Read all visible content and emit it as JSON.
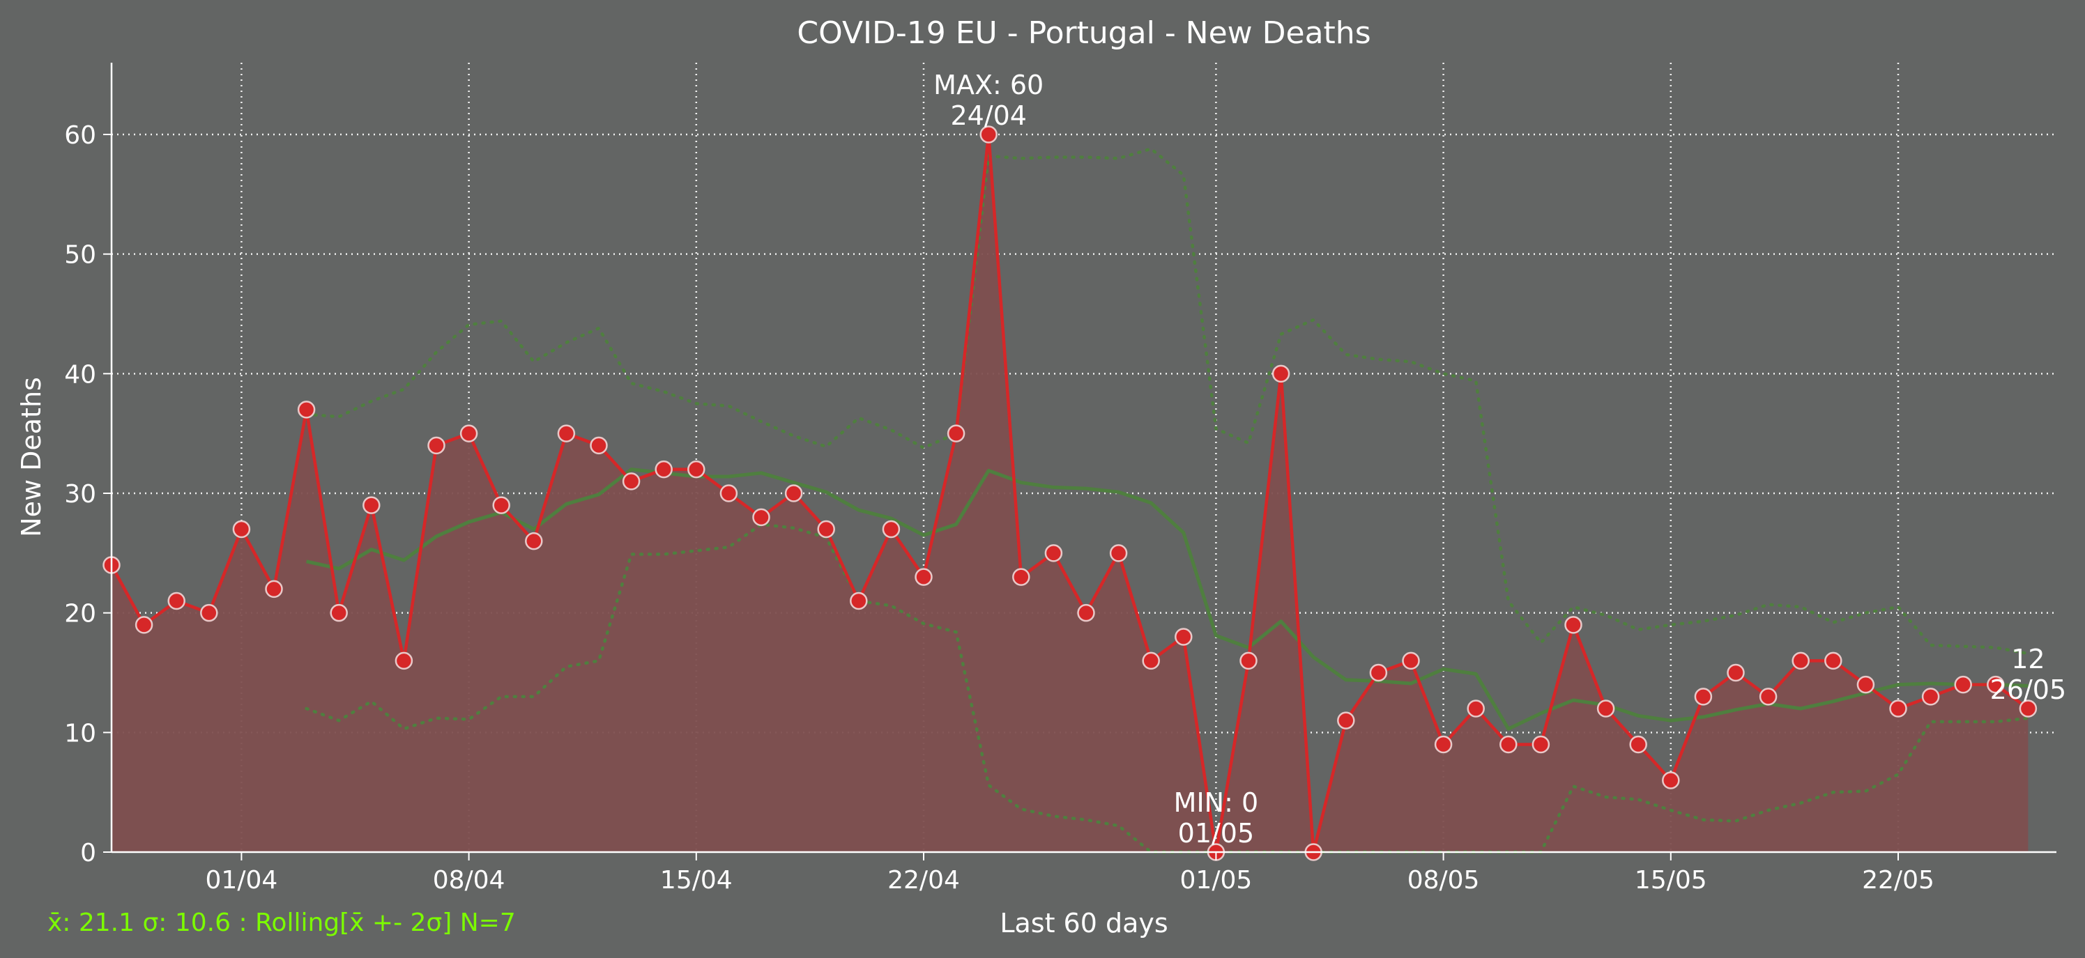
{
  "chart_data": {
    "type": "line",
    "title": "COVID-19 EU - Portugal - New Deaths",
    "xlabel": "Last 60 days",
    "ylabel": "New Deaths",
    "ylim": [
      0,
      66
    ],
    "yticks": [
      0,
      10,
      20,
      30,
      40,
      50,
      60
    ],
    "dates": [
      "28/03",
      "29/03",
      "30/03",
      "31/03",
      "01/04",
      "02/04",
      "03/04",
      "04/04",
      "05/04",
      "06/04",
      "07/04",
      "08/04",
      "09/04",
      "10/04",
      "11/04",
      "12/04",
      "13/04",
      "14/04",
      "15/04",
      "16/04",
      "17/04",
      "18/04",
      "19/04",
      "20/04",
      "21/04",
      "22/04",
      "23/04",
      "24/04",
      "25/04",
      "26/04",
      "27/04",
      "28/04",
      "29/04",
      "30/04",
      "01/05",
      "02/05",
      "03/05",
      "04/05",
      "05/05",
      "06/05",
      "07/05",
      "08/05",
      "09/05",
      "10/05",
      "11/05",
      "12/05",
      "13/05",
      "14/05",
      "15/05",
      "16/05",
      "17/05",
      "18/05",
      "19/05",
      "20/05",
      "21/05",
      "22/05",
      "23/05",
      "24/05",
      "25/05",
      "26/05"
    ],
    "xticks": [
      "01/04",
      "08/04",
      "15/04",
      "22/04",
      "01/05",
      "08/05",
      "15/05",
      "22/05"
    ],
    "series": [
      {
        "values": [
          24,
          19,
          21,
          20,
          27,
          22,
          37,
          20,
          29,
          16,
          34,
          35,
          29,
          26,
          35,
          34,
          31,
          32,
          32,
          30,
          28,
          30,
          27,
          21,
          27,
          23,
          35,
          60,
          23,
          25,
          20,
          25,
          16,
          18,
          0,
          16,
          40,
          0,
          11,
          15,
          16,
          9,
          12,
          9,
          9,
          19,
          12,
          9,
          6,
          13,
          15,
          13,
          16,
          16,
          14,
          12,
          13,
          14,
          14,
          12
        ],
        "color": "#d62728"
      },
      {
        "values": [
          null,
          null,
          null,
          null,
          null,
          null,
          24.3,
          23.7,
          25.3,
          24.4,
          26.4,
          27.6,
          28.4,
          27.0,
          29.1,
          29.9,
          32.0,
          31.7,
          31.4,
          31.4,
          31.7,
          30.9,
          30.1,
          28.6,
          27.9,
          26.5,
          27.4,
          31.9,
          30.9,
          30.5,
          30.4,
          30.1,
          29.2,
          26.7,
          18.1,
          17.1,
          19.3,
          16.3,
          14.4,
          14.3,
          14.1,
          15.3,
          14.9,
          10.3,
          11.6,
          12.7,
          12.3,
          11.4,
          11.0,
          11.3,
          11.9,
          12.4,
          12.0,
          12.6,
          13.3,
          14.0,
          14.1,
          14.0,
          14.0,
          13.9
        ],
        "color": "#4f7f3f"
      },
      {
        "values": [
          null,
          null,
          null,
          null,
          null,
          null,
          36.6,
          36.4,
          37.7,
          38.7,
          41.8,
          44.1,
          44.4,
          41.0,
          42.6,
          43.8,
          39.2,
          38.5,
          37.5,
          37.3,
          36.0,
          34.8,
          33.9,
          36.3,
          35.3,
          33.8,
          35.0,
          58.2,
          58.0,
          58.1,
          58.1,
          58.0,
          58.8,
          56.6,
          35.4,
          34.2,
          43.3,
          44.5,
          41.6,
          41.2,
          41.0,
          40.0,
          39.4,
          21.0,
          17.5,
          20.5,
          19.8,
          18.6,
          19.0,
          19.3,
          19.8,
          20.7,
          20.5,
          19.2,
          20.0,
          20.5,
          17.3,
          17.2,
          17.1,
          16.6
        ],
        "color": "#4f7f3f"
      },
      {
        "values": [
          null,
          null,
          null,
          null,
          null,
          null,
          12.0,
          11.0,
          12.6,
          10.3,
          11.2,
          11.1,
          13.0,
          13.0,
          15.5,
          16.0,
          24.9,
          24.9,
          25.2,
          25.5,
          27.4,
          27.1,
          26.3,
          21.0,
          20.6,
          19.1,
          18.4,
          5.6,
          3.6,
          3.0,
          2.7,
          2.2,
          0.0,
          0.0,
          0.0,
          0.0,
          0.0,
          0.0,
          0.0,
          0.0,
          0.0,
          0.0,
          0.0,
          0.0,
          0.0,
          5.5,
          4.6,
          4.4,
          3.5,
          2.7,
          2.6,
          3.5,
          4.1,
          5.0,
          5.1,
          6.5,
          10.9,
          10.9,
          10.9,
          11.2
        ],
        "color": "#4f7f3f"
      }
    ],
    "annotations": [
      {
        "line1": "MAX: 60",
        "line2": "24/04",
        "index": 27,
        "value": 60
      },
      {
        "line1": "MIN: 0",
        "line2": "01/05",
        "index": 34,
        "value": 0
      },
      {
        "line1": "12",
        "line2": "26/05",
        "index": 59,
        "value": 12
      }
    ],
    "footer": "x̄: 21.1 σ: 10.6 : Rolling[x̄ +- 2σ] N=7",
    "grid": true,
    "background": "#636564",
    "fill_color": "#7e4f4f"
  }
}
